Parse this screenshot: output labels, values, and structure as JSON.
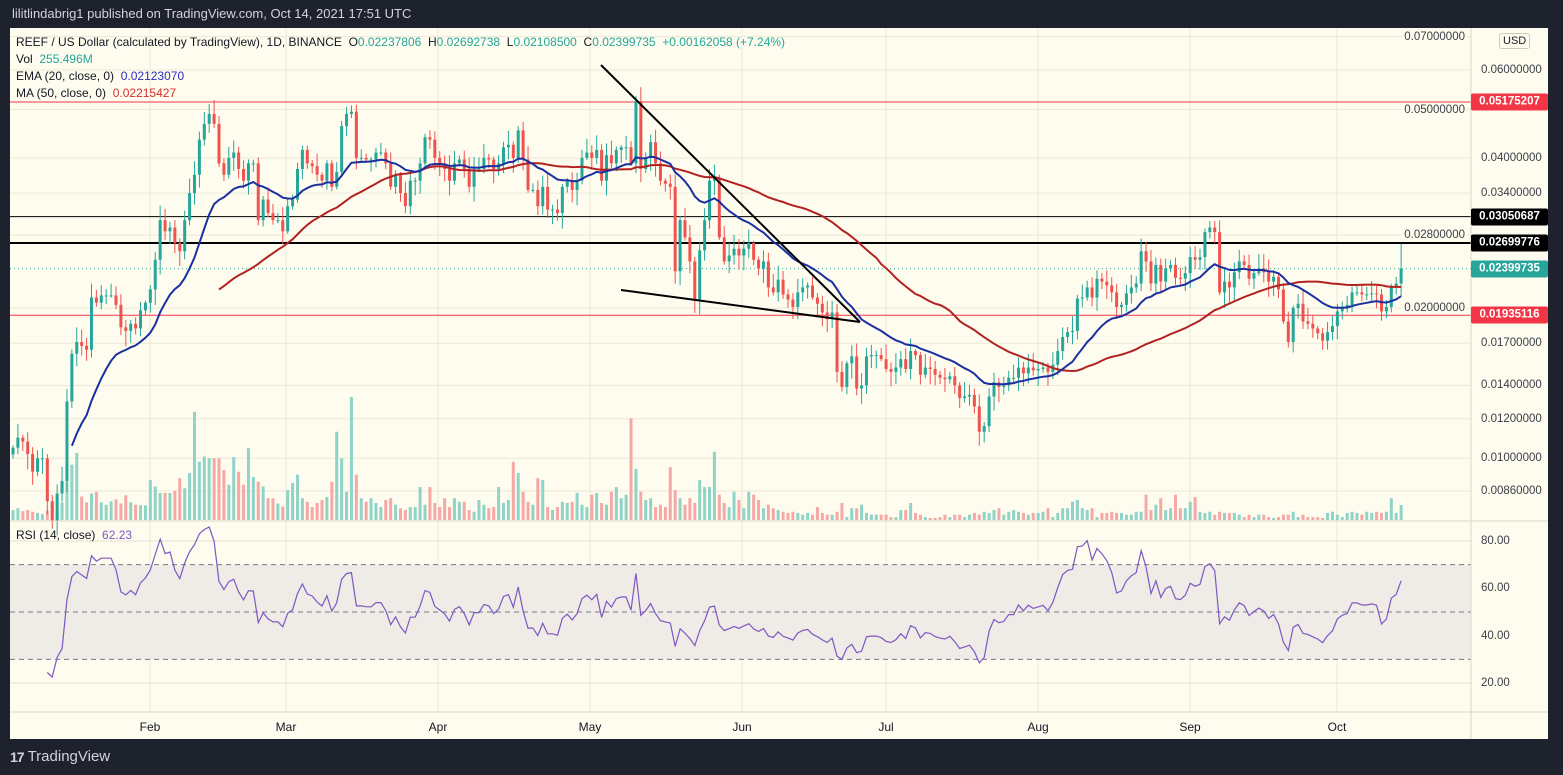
{
  "header": {
    "published": "lilitlindabrig1 published on TradingView.com, Oct 14, 2021 17:51 UTC"
  },
  "legend": {
    "symbol": "REEF / US Dollar (calculated by TradingView), 1D, BINANCE",
    "o_label": "O",
    "o": "0.02237806",
    "h_label": "H",
    "h": "0.02692738",
    "l_label": "L",
    "l": "0.02108500",
    "c_label": "C",
    "c": "0.02399735",
    "change": "+0.00162058 (+7.24%)",
    "vol_label": "Vol",
    "vol": "255.496M",
    "ema_label": "EMA (20, close, 0)",
    "ema": "0.02123070",
    "ma_label": "MA (50, close, 0)",
    "ma": "0.02215427"
  },
  "rsi": {
    "label": "RSI (14, close)",
    "value": "62.23"
  },
  "currency": "USD",
  "footer": {
    "brand": "TradingView"
  },
  "colors": {
    "up": "#26a69a",
    "down": "#ef5350",
    "ema": "#1a2fa0",
    "ma": "#b22222",
    "rsi": "#7e57c2",
    "background": "#fefcee",
    "frame": "#1e222d"
  },
  "chart_data": {
    "type": "candlestick",
    "interval": "1D",
    "y_scale": "log",
    "grid": true,
    "x_ticks": [
      "Feb",
      "Mar",
      "Apr",
      "May",
      "Jun",
      "Jul",
      "Aug",
      "Sep",
      "Oct"
    ],
    "price_ticks": [
      "0.07000000",
      "0.06000000",
      "0.05000000",
      "0.04000000",
      "0.03400000",
      "0.02800000",
      "0.02000000",
      "0.01700000",
      "0.01400000",
      "0.01200000",
      "0.01000000",
      "0.00860000"
    ],
    "price_levels": [
      {
        "value": "0.05175207",
        "color": "#f23645",
        "style": "solid"
      },
      {
        "value": "0.03050687",
        "color": "#000000",
        "style": "solid"
      },
      {
        "value": "0.02699776",
        "color": "#000000",
        "style": "solid-thick"
      },
      {
        "value": "0.02399735",
        "color": "#26a69a",
        "style": "dotted"
      },
      {
        "value": "0.01935116",
        "color": "#f23645",
        "style": "solid"
      }
    ],
    "rsi_ticks": [
      "80.00",
      "60.00",
      "40.00",
      "20.00"
    ],
    "rsi_levels": [
      70,
      50,
      30
    ],
    "closes": [
      0.0105,
      0.011,
      0.0108,
      0.0102,
      0.0094,
      0.01,
      0.01,
      0.0082,
      0.0075,
      0.0085,
      0.009,
      0.013,
      0.0162,
      0.0171,
      0.0168,
      0.0165,
      0.021,
      0.0205,
      0.0212,
      0.0212,
      0.0212,
      0.0203,
      0.0183,
      0.018,
      0.0186,
      0.0182,
      0.0198,
      0.0205,
      0.0218,
      0.025,
      0.03,
      0.0285,
      0.029,
      0.027,
      0.026,
      0.03,
      0.034,
      0.037,
      0.0435,
      0.0468,
      0.049,
      0.0468,
      0.039,
      0.037,
      0.04,
      0.041,
      0.038,
      0.036,
      0.039,
      0.039,
      0.03,
      0.033,
      0.031,
      0.03,
      0.03,
      0.0285,
      0.032,
      0.033,
      0.038,
      0.0415,
      0.039,
      0.0385,
      0.037,
      0.036,
      0.039,
      0.035,
      0.0375,
      0.0463,
      0.049,
      0.0495,
      0.04,
      0.04,
      0.0397,
      0.0397,
      0.041,
      0.041,
      0.039,
      0.035,
      0.037,
      0.034,
      0.032,
      0.036,
      0.036,
      0.039,
      0.044,
      0.0435,
      0.04,
      0.039,
      0.038,
      0.036,
      0.039,
      0.0397,
      0.038,
      0.035,
      0.038,
      0.038,
      0.04,
      0.0397,
      0.038,
      0.039,
      0.042,
      0.0425,
      0.04,
      0.0454,
      0.0397,
      0.0345,
      0.0345,
      0.032,
      0.035,
      0.0315,
      0.0315,
      0.031,
      0.035,
      0.036,
      0.0345,
      0.036,
      0.04,
      0.041,
      0.04,
      0.0415,
      0.036,
      0.0405,
      0.039,
      0.0415,
      0.042,
      0.042,
      0.039,
      0.052,
      0.038,
      0.04,
      0.043,
      0.039,
      0.036,
      0.0355,
      0.035,
      0.0237,
      0.03,
      0.0277,
      0.0248,
      0.0208,
      0.0261,
      0.03,
      0.036,
      0.0365,
      0.0277,
      0.0248,
      0.0255,
      0.0263,
      0.0255,
      0.0263,
      0.027,
      0.025,
      0.024,
      0.0248,
      0.022,
      0.0215,
      0.0228,
      0.0213,
      0.0208,
      0.0201,
      0.0215,
      0.022,
      0.0222,
      0.021,
      0.0204,
      0.0196,
      0.019,
      0.0196,
      0.0149,
      0.0139,
      0.0155,
      0.016,
      0.0138,
      0.014,
      0.016,
      0.0161,
      0.0161,
      0.0158,
      0.0151,
      0.0149,
      0.0152,
      0.0158,
      0.0151,
      0.0164,
      0.0161,
      0.0147,
      0.0152,
      0.0151,
      0.0147,
      0.0145,
      0.0144,
      0.0146,
      0.014,
      0.0132,
      0.0133,
      0.0134,
      0.0127,
      0.0113,
      0.0116,
      0.0133,
      0.0142,
      0.0139,
      0.014,
      0.0145,
      0.0145,
      0.0152,
      0.0148,
      0.0152,
      0.015,
      0.0151,
      0.0152,
      0.0149,
      0.0154,
      0.0164,
      0.0175,
      0.0179,
      0.018,
      0.0209,
      0.021,
      0.022,
      0.021,
      0.0229,
      0.0226,
      0.0222,
      0.0215,
      0.0201,
      0.0203,
      0.0214,
      0.022,
      0.0224,
      0.026,
      0.0248,
      0.0224,
      0.0244,
      0.0226,
      0.024,
      0.0244,
      0.023,
      0.0229,
      0.0235,
      0.0253,
      0.025,
      0.0253,
      0.0284,
      0.029,
      0.0284,
      0.0215,
      0.0226,
      0.022,
      0.0236,
      0.0248,
      0.0244,
      0.0229,
      0.0235,
      0.024,
      0.0236,
      0.0226,
      0.0231,
      0.0218,
      0.0188,
      0.0171,
      0.02,
      0.0204,
      0.0188,
      0.0186,
      0.0182,
      0.0178,
      0.0172,
      0.0179,
      0.0184,
      0.0197,
      0.0201,
      0.0203,
      0.0215,
      0.0215,
      0.0213,
      0.0213,
      0.0214,
      0.0213,
      0.0197,
      0.0201,
      0.022,
      0.0224,
      0.02399735
    ],
    "volume_m": [
      170,
      200,
      150,
      170,
      140,
      120,
      100,
      160,
      260,
      120,
      300,
      650,
      940,
      1140,
      400,
      300,
      450,
      480,
      300,
      260,
      320,
      350,
      280,
      420,
      300,
      260,
      250,
      250,
      680,
      570,
      460,
      460,
      460,
      500,
      710,
      540,
      800,
      1840,
      990,
      1080,
      1050,
      1050,
      1050,
      850,
      600,
      1070,
      820,
      600,
      1220,
      730,
      650,
      570,
      370,
      370,
      280,
      230,
      510,
      630,
      770,
      370,
      310,
      220,
      290,
      340,
      390,
      650,
      1500,
      1050,
      480,
      2090,
      770,
      370,
      310,
      370,
      290,
      220,
      340,
      370,
      260,
      200,
      170,
      220,
      220,
      560,
      260,
      560,
      290,
      220,
      370,
      220,
      370,
      310,
      310,
      170,
      140,
      340,
      260,
      200,
      220,
      560,
      290,
      340,
      990,
      800,
      480,
      310,
      260,
      710,
      680,
      220,
      170,
      220,
      310,
      290,
      310,
      460,
      260,
      220,
      430,
      460,
      290,
      260,
      480,
      560,
      370,
      430,
      1730,
      870,
      480,
      340,
      370,
      220,
      260,
      220,
      900,
      510,
      370,
      260,
      370,
      290,
      680,
      560,
      560,
      1160,
      430,
      290,
      220,
      480,
      340,
      200,
      480,
      430,
      340,
      200,
      260,
      200,
      170,
      140,
      120,
      140,
      120,
      90,
      120,
      90,
      220,
      120,
      90,
      90,
      140,
      290,
      50,
      200,
      200,
      260,
      120,
      90,
      90,
      90,
      90,
      50,
      50,
      170,
      170,
      290,
      120,
      90,
      50,
      35,
      35,
      50,
      90,
      50,
      90,
      90,
      50,
      90,
      120,
      90,
      140,
      120,
      170,
      200,
      90,
      140,
      170,
      140,
      120,
      90,
      120,
      120,
      140,
      200,
      50,
      120,
      200,
      200,
      310,
      340,
      200,
      170,
      200,
      50,
      120,
      120,
      140,
      120,
      120,
      90,
      90,
      140,
      140,
      430,
      170,
      260,
      370,
      170,
      200,
      430,
      200,
      200,
      310,
      390,
      140,
      120,
      140,
      90,
      140,
      120,
      120,
      120,
      90,
      50,
      90,
      50,
      90,
      90,
      50,
      35,
      50,
      90,
      90,
      140,
      50,
      90,
      50,
      50,
      50,
      35,
      120,
      140,
      90,
      50,
      120,
      140,
      120,
      90,
      140,
      120,
      140,
      120,
      140,
      370,
      120,
      255
    ]
  }
}
